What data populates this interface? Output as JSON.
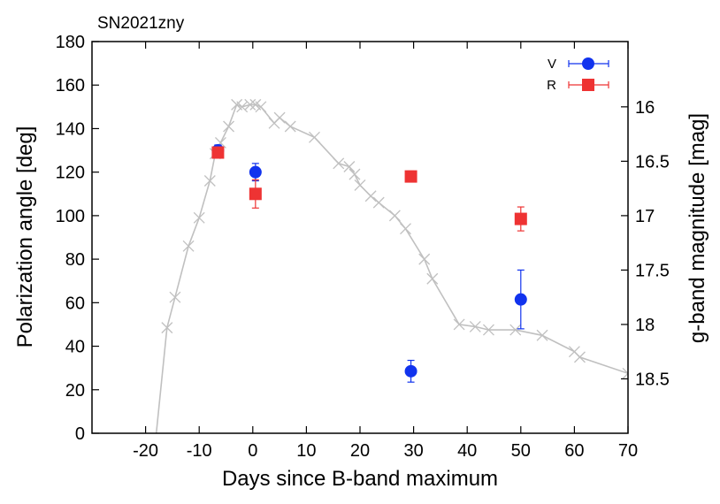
{
  "chart_data": {
    "type": "scatter",
    "title": "SN2021zny",
    "xlabel": "Days since B-band maximum",
    "ylabel": "Polarization angle [deg]",
    "y2label": "g-band magnitude [mag]",
    "xlim": [
      -30,
      70
    ],
    "ylim": [
      0,
      180
    ],
    "y2lim": [
      19.0,
      15.4
    ],
    "x_ticks": [
      -20,
      -10,
      0,
      10,
      20,
      30,
      40,
      50,
      60,
      70
    ],
    "x_tick_labels": [
      "-20",
      "-10",
      "0",
      "10",
      "20",
      "30",
      "40",
      "50",
      "60",
      "70"
    ],
    "y_ticks": [
      0,
      20,
      40,
      60,
      80,
      100,
      120,
      140,
      160,
      180
    ],
    "y_tick_labels": [
      "0",
      "20",
      "40",
      "60",
      "80",
      "100",
      "120",
      "140",
      "160",
      "180"
    ],
    "y2_ticks": [
      16,
      16.5,
      17,
      17.5,
      18,
      18.5
    ],
    "y2_tick_labels": [
      "16",
      "16.5",
      "17",
      "17.5",
      "18",
      "18.5"
    ],
    "legend_position": "top-right",
    "series": [
      {
        "name": "V",
        "color": "#1133ee",
        "marker": "circle",
        "x": [
          -6.5,
          0.5,
          29.5,
          50.0
        ],
        "y": [
          130,
          120,
          28.5,
          61.5
        ],
        "yerr": [
          2.5,
          4,
          5,
          13.5
        ]
      },
      {
        "name": "R",
        "color": "#ee3333",
        "marker": "square",
        "x": [
          -6.5,
          0.5,
          29.5,
          50.0
        ],
        "y": [
          129,
          110,
          118,
          98.5
        ],
        "yerr": [
          2,
          6.5,
          2.5,
          5.5
        ]
      }
    ],
    "lightcurve": {
      "name": "g-band",
      "color": "#c0c0c0",
      "axis": "right",
      "x": [
        -18,
        -16,
        -14.5,
        -12,
        -10,
        -8,
        -7,
        -6,
        -4.5,
        -3,
        -2,
        -0.5,
        0.5,
        1.5,
        4,
        5,
        7,
        11.5,
        16,
        18,
        19,
        20,
        22,
        23.5,
        26.5,
        28.5,
        32,
        33.5,
        38.5,
        41.5,
        44,
        49,
        54,
        60,
        61,
        70
      ],
      "y": [
        19.0,
        18.03,
        17.75,
        17.28,
        17.02,
        16.68,
        16.43,
        16.33,
        16.18,
        15.98,
        16.0,
        15.98,
        15.98,
        16.0,
        16.15,
        16.1,
        16.18,
        16.28,
        16.52,
        16.55,
        16.62,
        16.72,
        16.82,
        16.88,
        17.0,
        17.12,
        17.4,
        17.58,
        18.0,
        18.02,
        18.05,
        18.05,
        18.1,
        18.25,
        18.3,
        18.45
      ]
    },
    "lightcurve_markers_x": [
      -16,
      -14.5,
      -12,
      -10,
      -8,
      -7,
      -6,
      -4.5,
      -3,
      -2,
      -0.5,
      0.5,
      1.5,
      4,
      5,
      7,
      11.5,
      16,
      18,
      19,
      20,
      22,
      23.5,
      26.5,
      28.5,
      32,
      33.5,
      38.5,
      41.5,
      44,
      49,
      54,
      60,
      61,
      70
    ]
  }
}
